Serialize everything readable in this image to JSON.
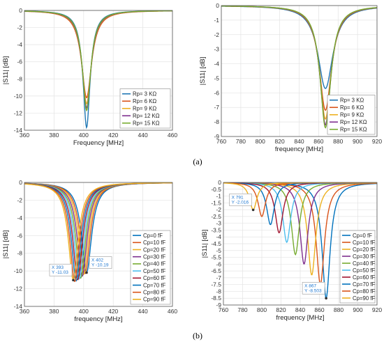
{
  "chart_data": [
    {
      "id": "a1",
      "type": "line",
      "ylabel": "|S11| [dB]",
      "xlabel": "Frequency [MHz]",
      "xlim": [
        360,
        460
      ],
      "ylim": [
        -14,
        0
      ],
      "xticks": [
        360,
        380,
        400,
        420,
        440,
        460
      ],
      "yticks": [
        0,
        -2,
        -4,
        -6,
        -8,
        -10,
        -12,
        -14
      ],
      "grid": true,
      "legend": "lower-right",
      "series": [
        {
          "name": "Rp= 3 KΩ",
          "color": "#1f77b4",
          "f0": 402,
          "min": -13.7,
          "bw": 4.4
        },
        {
          "name": "Rp= 6 KΩ",
          "color": "#d95319",
          "f0": 402,
          "min": -10.2,
          "bw": 5.6
        },
        {
          "name": "Rp= 9 KΩ",
          "color": "#edb120",
          "f0": 402,
          "min": -10.9,
          "bw": 5.2
        },
        {
          "name": "Rp= 12 KΩ",
          "color": "#7e2f8e",
          "f0": 402,
          "min": -11.4,
          "bw": 5.0
        },
        {
          "name": "Rp= 15 KΩ",
          "color": "#77ac30",
          "f0": 402,
          "min": -11.7,
          "bw": 4.8
        }
      ]
    },
    {
      "id": "a2",
      "type": "line",
      "ylabel": "|S11| [dB]",
      "xlabel": "frequency [MHz]",
      "xlim": [
        760,
        920
      ],
      "ylim": [
        -9,
        0
      ],
      "xticks": [
        760,
        780,
        800,
        820,
        840,
        860,
        880,
        900,
        920
      ],
      "yticks": [
        0,
        -1,
        -2,
        -3,
        -4,
        -5,
        -6,
        -7,
        -8,
        -9
      ],
      "grid": true,
      "legend": "lower-right",
      "series": [
        {
          "name": "Rp= 3 KΩ",
          "color": "#1f77b4",
          "f0": 867,
          "min": -5.7,
          "bw": 11
        },
        {
          "name": "Rp= 6 KΩ",
          "color": "#d95319",
          "f0": 867,
          "min": -7.2,
          "bw": 9.5
        },
        {
          "name": "Rp= 9 KΩ",
          "color": "#edb120",
          "f0": 867,
          "min": -7.8,
          "bw": 9
        },
        {
          "name": "Rp= 12 KΩ",
          "color": "#7e2f8e",
          "f0": 867,
          "min": -8.2,
          "bw": 8.7
        },
        {
          "name": "Rp= 15 KΩ",
          "color": "#77ac30",
          "f0": 867,
          "min": -8.4,
          "bw": 8.5
        }
      ]
    },
    {
      "id": "b1",
      "type": "line",
      "ylabel": "|S11| [dB]",
      "xlabel": "frequency [MHz]",
      "xlim": [
        360,
        460
      ],
      "ylim": [
        -14,
        0
      ],
      "xticks": [
        360,
        380,
        400,
        420,
        440,
        460
      ],
      "yticks": [
        0,
        -2,
        -4,
        -6,
        -8,
        -10,
        -12,
        -14
      ],
      "grid": true,
      "legend": "lower-right",
      "series": [
        {
          "name": "Cp=0 fF",
          "color": "#0072bd",
          "f0": 402,
          "min": -10.19,
          "bw": 5.5
        },
        {
          "name": "Cp=10 fF",
          "color": "#d95319",
          "f0": 401,
          "min": -10.3,
          "bw": 5.5
        },
        {
          "name": "Cp=20 fF",
          "color": "#edb120",
          "f0": 400,
          "min": -10.4,
          "bw": 5.5
        },
        {
          "name": "Cp=30 fF",
          "color": "#7e2f8e",
          "f0": 399,
          "min": -10.6,
          "bw": 5.5
        },
        {
          "name": "Cp=40 fF",
          "color": "#77ac30",
          "f0": 398,
          "min": -10.8,
          "bw": 5.5
        },
        {
          "name": "Cp=50 fF",
          "color": "#4dbeee",
          "f0": 397,
          "min": -10.9,
          "bw": 5.5
        },
        {
          "name": "Cp=60 fF",
          "color": "#a2142f",
          "f0": 396,
          "min": -11.0,
          "bw": 5.5
        },
        {
          "name": "Cp=70 fF",
          "color": "#0072bd",
          "f0": 395,
          "min": -11.1,
          "bw": 5.5
        },
        {
          "name": "Cp=80 fF",
          "color": "#d95319",
          "f0": 394,
          "min": -11.2,
          "bw": 5.5
        },
        {
          "name": "Cp=90 fF",
          "color": "#edb120",
          "f0": 393,
          "min": -11.03,
          "bw": 5.5
        }
      ],
      "datatips": [
        {
          "x": 393,
          "y": -11.03,
          "text_x": "X 393",
          "text_y": "Y -11.03",
          "box": "left"
        },
        {
          "x": 402,
          "y": -10.19,
          "text_x": "X 402",
          "text_y": "Y -10.19",
          "box": "right"
        }
      ]
    },
    {
      "id": "b2",
      "type": "line",
      "ylabel": "|S11| [dB]",
      "xlabel": "frequency [MHz]",
      "xlim": [
        760,
        920
      ],
      "ylim": [
        -9,
        0
      ],
      "xticks": [
        760,
        780,
        800,
        820,
        840,
        860,
        880,
        900,
        920
      ],
      "yticks": [
        0,
        -0.5,
        -1,
        -1.5,
        -2,
        -2.5,
        -3,
        -3.5,
        -4,
        -4.5,
        -5,
        -5.5,
        -6,
        -6.5,
        -7,
        -7.5,
        -8,
        -8.5,
        -9
      ],
      "grid": true,
      "legend": "lower-right",
      "series": [
        {
          "name": "Cp=0 fF",
          "color": "#0072bd",
          "f0": 867,
          "min": -8.503,
          "bw": 6.5
        },
        {
          "name": "Cp=10 fF",
          "color": "#d95319",
          "f0": 861,
          "min": -7.5,
          "bw": 6.5
        },
        {
          "name": "Cp=20 fF",
          "color": "#edb120",
          "f0": 852,
          "min": -6.8,
          "bw": 6.3
        },
        {
          "name": "Cp=30 fF",
          "color": "#7e2f8e",
          "f0": 844,
          "min": -6.0,
          "bw": 6.1
        },
        {
          "name": "Cp=40 fF",
          "color": "#77ac30",
          "f0": 835,
          "min": -5.3,
          "bw": 5.9
        },
        {
          "name": "Cp=50 fF",
          "color": "#4dbeee",
          "f0": 826,
          "min": -4.4,
          "bw": 5.7
        },
        {
          "name": "Cp=60 fF",
          "color": "#a2142f",
          "f0": 818,
          "min": -3.7,
          "bw": 5.5
        },
        {
          "name": "Cp=70 fF",
          "color": "#0072bd",
          "f0": 809,
          "min": -3.1,
          "bw": 5.3
        },
        {
          "name": "Cp=80 fF",
          "color": "#d95319",
          "f0": 800,
          "min": -2.5,
          "bw": 5.1
        },
        {
          "name": "Cp=90 fF",
          "color": "#edb120",
          "f0": 791,
          "min": -2.016,
          "bw": 4.9
        }
      ],
      "datatips": [
        {
          "x": 791,
          "y": -2.016,
          "text_x": "X 791",
          "text_y": "Y -2.016",
          "box": "left"
        },
        {
          "x": 867,
          "y": -8.503,
          "text_x": "X 867",
          "text_y": "Y -8.503",
          "box": "left"
        }
      ]
    }
  ],
  "captions": {
    "a": "(a)",
    "b": "(b)"
  }
}
